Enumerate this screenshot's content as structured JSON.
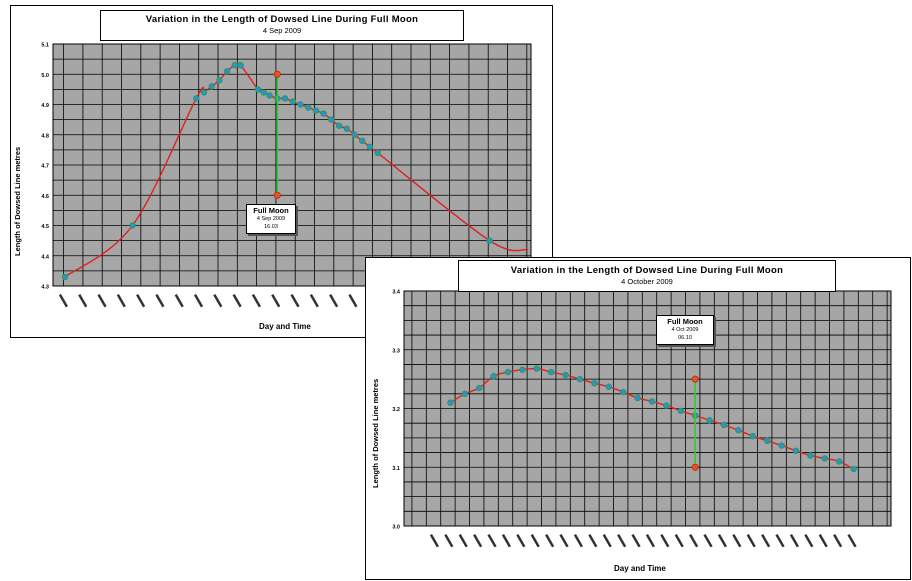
{
  "charts": [
    {
      "title": "Variation in the Length of Dowsed Line During Full Moon",
      "subtitle": "4 Sep 2009",
      "xlabel": "Day and Time",
      "ylabel": "Length of Dowsed Line metres",
      "callout": {
        "label": "Full Moon",
        "date": "4 Sep 2009",
        "value": "16.03"
      }
    },
    {
      "title": "Variation in the Length of Dowsed Line During Full Moon",
      "subtitle": "4 October 2009",
      "xlabel": "Day and Time",
      "ylabel": "Length of Dowsed Line metres",
      "callout": {
        "label": "Full Moon",
        "date": "4 Oct 2009",
        "value": "06.10"
      }
    }
  ],
  "chart_data": [
    {
      "type": "line",
      "title": "Variation in the Length of Dowsed Line During Full Moon",
      "subtitle": "4 Sep 2009",
      "xlabel": "Day and Time",
      "ylabel": "Length of Dowsed Line metres",
      "ylim": [
        4.3,
        5.1
      ],
      "yticks": [
        "4.3",
        "4.4",
        "4.5",
        "4.6",
        "4.7",
        "4.8",
        "4.9",
        "5.0",
        "5.1"
      ],
      "grid": true,
      "x_slots": 24,
      "series": [
        {
          "points": [
            [
              0,
              4.33
            ],
            [
              3.5,
              4.5
            ],
            [
              6.8,
              4.92
            ],
            [
              7.2,
              4.94
            ],
            [
              7.6,
              4.96
            ],
            [
              8.0,
              4.98
            ],
            [
              8.4,
              5.01
            ],
            [
              8.8,
              5.03
            ],
            [
              9.1,
              5.03
            ],
            [
              10.0,
              4.95
            ],
            [
              10.3,
              4.94
            ],
            [
              10.6,
              4.93
            ],
            [
              11.0,
              4.92
            ],
            [
              11.4,
              4.92
            ],
            [
              11.8,
              4.91
            ],
            [
              12.2,
              4.9
            ],
            [
              12.6,
              4.89
            ],
            [
              13.0,
              4.88
            ],
            [
              13.4,
              4.87
            ],
            [
              13.8,
              4.85
            ],
            [
              14.2,
              4.83
            ],
            [
              14.6,
              4.82
            ],
            [
              15.0,
              4.8
            ],
            [
              15.4,
              4.78
            ],
            [
              15.8,
              4.76
            ],
            [
              16.2,
              4.74
            ],
            [
              22.0,
              4.45
            ]
          ]
        }
      ],
      "curve_end": [
        24.0,
        4.42
      ],
      "full_moon_marker": {
        "x": 11.0,
        "y_low": 4.6,
        "y_high": 5.0
      }
    },
    {
      "type": "line",
      "title": "Variation in the Length of Dowsed Line During Full Moon",
      "subtitle": "4 October 2009",
      "xlabel": "Day and Time",
      "ylabel": "Length of Dowsed Line metres",
      "ylim": [
        3.0,
        3.4
      ],
      "yticks": [
        "3.0",
        "3.1",
        "3.2",
        "3.3",
        "3.4"
      ],
      "grid": true,
      "x_slots": 30,
      "series": [
        {
          "points": [
            [
              1,
              3.21
            ],
            [
              2,
              3.225
            ],
            [
              3,
              3.235
            ],
            [
              4,
              3.255
            ],
            [
              5,
              3.262
            ],
            [
              6,
              3.266
            ],
            [
              7,
              3.268
            ],
            [
              8,
              3.262
            ],
            [
              9,
              3.257
            ],
            [
              10,
              3.25
            ],
            [
              11,
              3.243
            ],
            [
              12,
              3.237
            ],
            [
              13,
              3.228
            ],
            [
              14,
              3.218
            ],
            [
              15,
              3.212
            ],
            [
              16,
              3.205
            ],
            [
              17,
              3.196
            ],
            [
              18,
              3.188
            ],
            [
              19,
              3.18
            ],
            [
              20,
              3.172
            ],
            [
              21,
              3.163
            ],
            [
              22,
              3.153
            ],
            [
              23,
              3.145
            ],
            [
              24,
              3.137
            ],
            [
              25,
              3.128
            ],
            [
              26,
              3.12
            ],
            [
              27,
              3.115
            ],
            [
              28,
              3.11
            ],
            [
              29,
              3.097
            ]
          ]
        }
      ],
      "full_moon_marker": {
        "x": 18,
        "y_low": 3.1,
        "y_high": 3.25
      }
    }
  ],
  "colors": {
    "plot_bg": "#a6a6a6",
    "grid": "#000000",
    "line": "#e02020",
    "points": "#2f8fd0",
    "point_outline": "#20a040",
    "marker_line": "#33cc33",
    "marker_dot": "#e85020"
  }
}
